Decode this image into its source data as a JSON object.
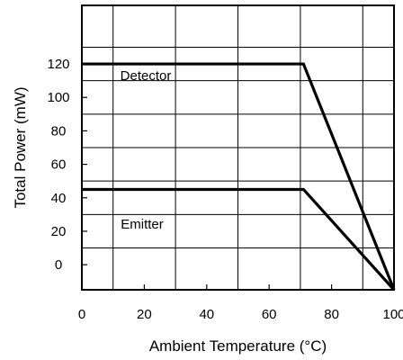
{
  "chart_data": {
    "type": "line",
    "xlabel": "Ambient Temperature (°C)",
    "ylabel": "Total Power (mW)",
    "x_ticks": [
      "0",
      "20",
      "40",
      "60",
      "80",
      "100"
    ],
    "y_ticks": [
      "0",
      "20",
      "40",
      "60",
      "80",
      "100",
      "120"
    ],
    "xlim": [
      0,
      100
    ],
    "ylim": [
      -15,
      155
    ],
    "grid": true,
    "line_color": "#000000",
    "series": [
      {
        "name": "Detector",
        "x": [
          0,
          71,
          100
        ],
        "y": [
          120,
          120,
          -15
        ]
      },
      {
        "name": "Emitter",
        "x": [
          0,
          71,
          100
        ],
        "y": [
          45,
          45,
          -15
        ]
      }
    ]
  }
}
